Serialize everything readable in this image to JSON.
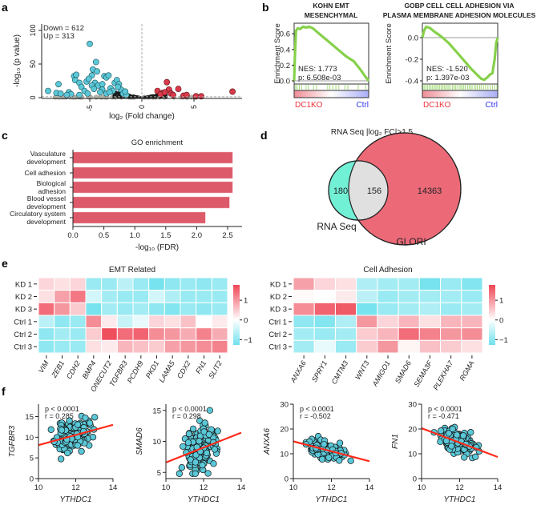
{
  "panel_labels": {
    "a": "a",
    "b": "b",
    "c": "c",
    "d": "d",
    "e": "e",
    "f": "f"
  },
  "chart_data": [
    {
      "panel": "a",
      "type": "scatter",
      "xlabel": "log₂ (Fold change)",
      "ylabel": "-log₁₀ (p value)",
      "xlim": [
        -9.5,
        9.5
      ],
      "ylim": [
        0,
        110
      ],
      "xticks": [
        -5,
        0,
        5
      ],
      "yticks": [
        0,
        50,
        100
      ],
      "annotations": [
        "Down = 612",
        "Up = 313"
      ],
      "colors": {
        "down": "#5bc8d8",
        "up": "#d83a4a",
        "ns": "#1a1a1a",
        "baseline": "#bbbbaa"
      },
      "down_points": [
        [
          -9,
          10
        ],
        [
          -8,
          20
        ],
        [
          -8.2,
          7
        ],
        [
          -7.8,
          6
        ],
        [
          -7,
          8
        ],
        [
          -6.5,
          32
        ],
        [
          -6.3,
          34
        ],
        [
          -6.4,
          26
        ],
        [
          -6,
          22
        ],
        [
          -5.8,
          16
        ],
        [
          -5.3,
          24
        ],
        [
          -5,
          80
        ],
        [
          -4.8,
          33
        ],
        [
          -4.7,
          42
        ],
        [
          -4.4,
          53
        ],
        [
          -4.3,
          39
        ],
        [
          -4.5,
          22
        ],
        [
          -4.8,
          18
        ],
        [
          -4.2,
          18
        ],
        [
          -3.6,
          32
        ],
        [
          -3.4,
          30
        ],
        [
          -3.2,
          33
        ],
        [
          -3,
          14
        ],
        [
          -2.6,
          22
        ],
        [
          -2.4,
          26
        ],
        [
          -2.2,
          20
        ],
        [
          -2,
          12
        ],
        [
          -3.8,
          12
        ],
        [
          -5.5,
          10
        ],
        [
          -6.8,
          5
        ],
        [
          -5.2,
          6
        ],
        [
          -4,
          8
        ],
        [
          -3.4,
          6
        ],
        [
          -2.8,
          10
        ],
        [
          -1.8,
          6
        ],
        [
          -1.5,
          4
        ],
        [
          -6,
          4
        ],
        [
          -7.2,
          4
        ],
        [
          -4.6,
          13
        ],
        [
          -3.8,
          20
        ],
        [
          -5.1,
          28
        ],
        [
          -2.3,
          16
        ],
        [
          -3.1,
          8
        ],
        [
          -1.6,
          9
        ]
      ],
      "up_points": [
        [
          1.5,
          10
        ],
        [
          2,
          7
        ],
        [
          2.4,
          23
        ],
        [
          2.6,
          12
        ],
        [
          2.8,
          6
        ],
        [
          3.5,
          13
        ],
        [
          4,
          3
        ],
        [
          4.3,
          4
        ],
        [
          5.2,
          2
        ],
        [
          5.7,
          2
        ],
        [
          8.7,
          9
        ],
        [
          1.8,
          5
        ],
        [
          3,
          4
        ],
        [
          2.2,
          8
        ]
      ]
    },
    {
      "panel": "b",
      "type": "line",
      "title": [
        "KOHN EMT",
        "MESENCHYMAL"
      ],
      "ylabel": "Enrichment Score",
      "ylim": [
        -0.03,
        0.72
      ],
      "yticks": [
        "0.0",
        "0.2",
        "0.4",
        "0.6"
      ],
      "ytick_values": [
        0,
        0.2,
        0.4,
        0.6
      ],
      "nes": "NES: 1.773",
      "p": "p: 6.508e-03",
      "left_label": "DC1KO",
      "right_label": "Ctrl",
      "curve_color": "#86d14a",
      "running_es": [
        [
          0,
          0
        ],
        [
          0.01,
          0.3
        ],
        [
          0.025,
          0.64
        ],
        [
          0.05,
          0.67
        ],
        [
          0.08,
          0.66
        ],
        [
          0.12,
          0.69
        ],
        [
          0.16,
          0.68
        ],
        [
          0.2,
          0.69
        ],
        [
          0.25,
          0.67
        ],
        [
          0.3,
          0.63
        ],
        [
          0.4,
          0.55
        ],
        [
          0.5,
          0.47
        ],
        [
          0.6,
          0.39
        ],
        [
          0.7,
          0.31
        ],
        [
          0.75,
          0.28
        ],
        [
          0.8,
          0.25
        ],
        [
          0.85,
          0.19
        ],
        [
          0.9,
          0.13
        ],
        [
          0.95,
          0.06
        ],
        [
          1,
          0
        ]
      ],
      "hits": [
        0.02,
        0.04,
        0.07,
        0.1,
        0.16,
        0.19,
        0.26,
        0.3,
        0.45,
        0.48,
        0.52,
        0.56,
        0.6,
        0.68,
        0.72,
        0.86,
        0.96
      ]
    },
    {
      "panel": "b",
      "type": "line",
      "title": [
        "GOBP CELL CELL ADHESION VIA",
        "PLASMA MEMBRANE ADHESION MOLECULES"
      ],
      "ylabel": "Enrichment Score",
      "ylim": [
        -0.43,
        0.13
      ],
      "yticks": [
        "0.0",
        "-0.2",
        "-0.4"
      ],
      "ytick_values": [
        0,
        -0.2,
        -0.4
      ],
      "nes": "NES: -1.520",
      "p": "p: 1.397e-03",
      "left_label": "DC1KO",
      "right_label": "Ctrl",
      "curve_color": "#86d14a",
      "running_es": [
        [
          0,
          0
        ],
        [
          0.02,
          0.06
        ],
        [
          0.05,
          0.1
        ],
        [
          0.1,
          0.09
        ],
        [
          0.15,
          0.06
        ],
        [
          0.25,
          0.01
        ],
        [
          0.35,
          -0.05
        ],
        [
          0.45,
          -0.13
        ],
        [
          0.55,
          -0.21
        ],
        [
          0.65,
          -0.29
        ],
        [
          0.72,
          -0.34
        ],
        [
          0.78,
          -0.38
        ],
        [
          0.82,
          -0.39
        ],
        [
          0.86,
          -0.37
        ],
        [
          0.9,
          -0.34
        ],
        [
          0.93,
          -0.33
        ],
        [
          0.96,
          -0.2
        ],
        [
          0.98,
          -0.05
        ],
        [
          1,
          0
        ]
      ],
      "hits": [
        0.01,
        0.03,
        0.05,
        0.07,
        0.09,
        0.11,
        0.13,
        0.15,
        0.17,
        0.19,
        0.21,
        0.23,
        0.25,
        0.27,
        0.29,
        0.31,
        0.33,
        0.35,
        0.37,
        0.4,
        0.42,
        0.44,
        0.46,
        0.49,
        0.51,
        0.53,
        0.55,
        0.57,
        0.6,
        0.62,
        0.64,
        0.66,
        0.69,
        0.71,
        0.73,
        0.76,
        0.78,
        0.81,
        0.84,
        0.87,
        0.9,
        0.93,
        0.96,
        0.99
      ]
    },
    {
      "panel": "c",
      "type": "bar",
      "orientation": "horizontal",
      "title": "GO enrichment",
      "xlabel": "-log₁₀ (FDR)",
      "categories": [
        [
          "Vasculature",
          "development"
        ],
        [
          "Cell adhesion"
        ],
        [
          "Biological",
          "adhesion"
        ],
        [
          "Blood vessel",
          "development"
        ],
        [
          "Circulatory system",
          "development"
        ]
      ],
      "values": [
        2.58,
        2.58,
        2.58,
        2.53,
        2.14
      ],
      "xlim": [
        0,
        2.7
      ],
      "xticks": [
        "0.0",
        "0.5",
        "1.0",
        "1.5",
        "2.0",
        "2.5"
      ],
      "color": "#dc5a6a"
    },
    {
      "panel": "d",
      "type": "venn",
      "title": "RNA Seq |log₂ FC|>1.5",
      "sets": [
        {
          "name": "RNA Seq",
          "only": "180",
          "color": "#72f0d6"
        },
        {
          "name": "GLORI",
          "only": "14363",
          "color": "#ec6a78"
        }
      ],
      "overlap": "156",
      "overlap_color": "#e0e0e0"
    },
    {
      "panel": "e",
      "type": "heatmap",
      "title": "EMT Related",
      "rows": [
        "KD 1",
        "KD 2",
        "KD 3",
        "Ctrl 1",
        "Ctrl 2",
        "Ctrl 3"
      ],
      "columns": [
        "VIM",
        "ZEB1",
        "CDH2",
        "BMP4",
        "ONECUT2",
        "TGFBR3",
        "PCDH9",
        "PKD1",
        "LAMA5",
        "CDX2",
        "FN1",
        "SLIT2"
      ],
      "values": [
        [
          0.4,
          0.3,
          0.4,
          -0.9,
          -0.9,
          -0.6,
          -0.9,
          -1.2,
          -1.0,
          -0.9,
          -1.0,
          -0.9
        ],
        [
          0.3,
          0.9,
          1.3,
          -0.4,
          -0.8,
          -0.9,
          -0.9,
          -0.4,
          -0.7,
          -0.9,
          -0.9,
          -0.9
        ],
        [
          1.4,
          1.0,
          0.5,
          -1.2,
          -0.8,
          -0.9,
          -0.8,
          -1.0,
          -1.1,
          -0.9,
          -1.0,
          -0.9
        ],
        [
          -0.6,
          -1.0,
          -0.9,
          1.1,
          0.2,
          -0.5,
          -0.2,
          0.4,
          0.3,
          0.6,
          0.0,
          0.2
        ],
        [
          -1.0,
          -0.8,
          -0.9,
          0.5,
          1.7,
          1.4,
          1.5,
          1.1,
          1.0,
          0.8,
          1.2,
          0.8
        ],
        [
          -1.0,
          -0.9,
          -0.9,
          0.3,
          0.2,
          0.7,
          0.6,
          0.5,
          0.9,
          1.0,
          1.1,
          1.2
        ]
      ],
      "colorbar_ticks": [
        "1",
        "0",
        "−1"
      ],
      "colorbar_tick_values": [
        1,
        0,
        -1
      ],
      "vmin": -1.27,
      "vmax": 1.78,
      "colors": {
        "low": "#6fe1ed",
        "mid": "#ffffff",
        "high": "#ee4655"
      }
    },
    {
      "panel": "e",
      "type": "heatmap",
      "title": "Cell Adhesion",
      "rows": [
        "KD 1",
        "KD 2",
        "KD 3",
        "Ctrl 1",
        "Ctrl 2",
        "Ctrl 3"
      ],
      "columns": [
        "ANXA6",
        "SPRY1",
        "CMTM3",
        "WNT3",
        "AMIGO1",
        "SMAD6",
        "SEMA3F",
        "PLEKHA7",
        "RGMA"
      ],
      "values": [
        [
          0.9,
          0.4,
          0.3,
          -0.7,
          -0.8,
          -0.8,
          -1.2,
          -0.9,
          -1.1
        ],
        [
          0.05,
          0.0,
          0.2,
          -0.6,
          -0.9,
          -0.8,
          -0.8,
          -0.8,
          -0.9
        ],
        [
          1.1,
          1.5,
          1.6,
          -1.2,
          -0.9,
          -0.8,
          -0.7,
          -0.9,
          -0.8
        ],
        [
          -1.0,
          -1.1,
          -0.7,
          1.0,
          0.4,
          0.7,
          0.3,
          0.7,
          0.7
        ],
        [
          -0.8,
          -0.9,
          -0.8,
          0.5,
          0.7,
          1.4,
          1.2,
          1.0,
          1.1
        ],
        [
          -0.8,
          -0.2,
          -0.9,
          0.5,
          1.0,
          0.1,
          0.6,
          0.5,
          0.3
        ]
      ],
      "colorbar_ticks": [
        "1",
        "0",
        "−1"
      ],
      "colorbar_tick_values": [
        1,
        0,
        -1
      ],
      "vmin": -1.27,
      "vmax": 1.78,
      "colors": {
        "low": "#6fe1ed",
        "mid": "#ffffff",
        "high": "#ee4655"
      }
    },
    {
      "panel": "f",
      "type": "scatter",
      "xlabel": "YTHDC1",
      "ylabel": "TGFBR3",
      "xlim": [
        10,
        14
      ],
      "ylim": [
        0,
        18
      ],
      "xticks": [
        10,
        12,
        14
      ],
      "yticks": [
        0,
        5,
        10,
        15
      ],
      "p": "p < 0.0001",
      "r": "r = 0.285",
      "fit": [
        [
          10,
          8.1
        ],
        [
          14,
          13.0
        ]
      ],
      "point_color": "#5bc8d8",
      "line_color": "#ff2a1a"
    },
    {
      "panel": "f",
      "type": "scatter",
      "xlabel": "YTHDC1",
      "ylabel": "SMAD6",
      "xlim": [
        10,
        14
      ],
      "ylim": [
        4,
        16
      ],
      "xticks": [
        10,
        12,
        14
      ],
      "yticks": [
        5,
        10,
        15
      ],
      "p": "p < 0.0001",
      "r": "r = 0.298",
      "fit": [
        [
          10,
          6.6
        ],
        [
          14,
          11.4
        ]
      ],
      "point_color": "#5bc8d8",
      "line_color": "#ff2a1a"
    },
    {
      "panel": "f",
      "type": "scatter",
      "xlabel": "YTHDC1",
      "ylabel": "ANXA6",
      "xlim": [
        10,
        14
      ],
      "ylim": [
        0,
        30
      ],
      "xticks": [
        10,
        12,
        14
      ],
      "yticks": [
        0,
        10,
        20,
        30
      ],
      "p": "p < 0.0001",
      "r": "r = -0.502",
      "fit": [
        [
          10,
          15.0
        ],
        [
          14,
          7.0
        ]
      ],
      "point_color": "#5bc8d8",
      "line_color": "#ff2a1a"
    },
    {
      "panel": "f",
      "type": "scatter",
      "xlabel": "YTHDC1",
      "ylabel": "FN1",
      "xlim": [
        10,
        14
      ],
      "ylim": [
        0,
        30
      ],
      "xticks": [
        10,
        12,
        14
      ],
      "yticks": [
        0,
        10,
        20,
        30
      ],
      "p": "p < 0.0001",
      "r": "r = -0.471",
      "fit": [
        [
          10,
          20.3
        ],
        [
          14,
          8.7
        ]
      ],
      "point_color": "#5bc8d8",
      "line_color": "#ff2a1a"
    }
  ]
}
